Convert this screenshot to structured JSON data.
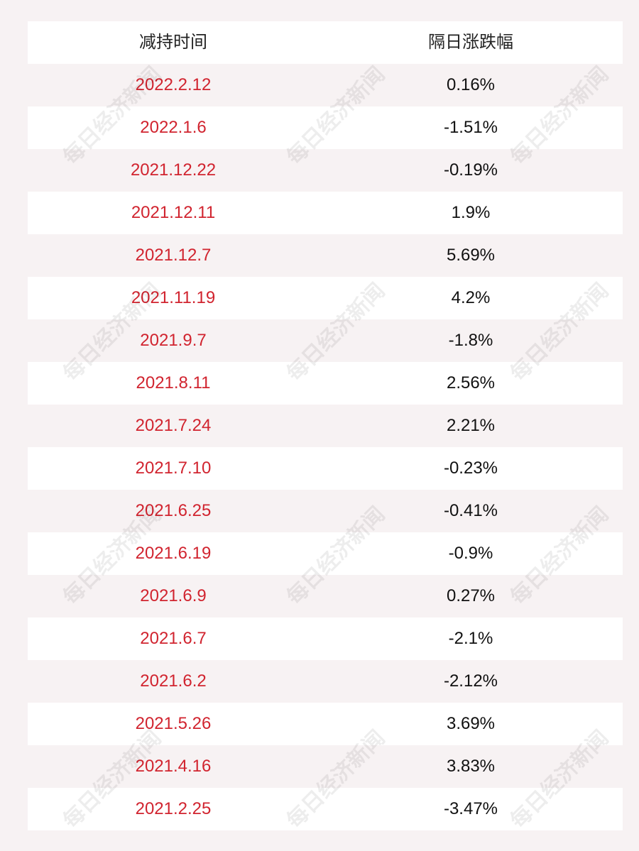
{
  "table": {
    "headers": [
      "减持时间",
      "隔日涨跌幅"
    ],
    "rows": [
      {
        "date": "2022.2.12",
        "change": "0.16%"
      },
      {
        "date": "2022.1.6",
        "change": "-1.51%"
      },
      {
        "date": "2021.12.22",
        "change": "-0.19%"
      },
      {
        "date": "2021.12.11",
        "change": "1.9%"
      },
      {
        "date": "2021.12.7",
        "change": "5.69%"
      },
      {
        "date": "2021.11.19",
        "change": "4.2%"
      },
      {
        "date": "2021.9.7",
        "change": "-1.8%"
      },
      {
        "date": "2021.8.11",
        "change": "2.56%"
      },
      {
        "date": "2021.7.24",
        "change": "2.21%"
      },
      {
        "date": "2021.7.10",
        "change": "-0.23%"
      },
      {
        "date": "2021.6.25",
        "change": "-0.41%"
      },
      {
        "date": "2021.6.19",
        "change": "-0.9%"
      },
      {
        "date": "2021.6.9",
        "change": "0.27%"
      },
      {
        "date": "2021.6.7",
        "change": "-2.1%"
      },
      {
        "date": "2021.6.2",
        "change": "-2.12%"
      },
      {
        "date": "2021.5.26",
        "change": "3.69%"
      },
      {
        "date": "2021.4.16",
        "change": "3.83%"
      },
      {
        "date": "2021.2.25",
        "change": "-3.47%"
      }
    ]
  },
  "watermark": {
    "text": "每日经济新闻"
  },
  "colors": {
    "date_text": "#d1242f",
    "change_text": "#111111",
    "header_text": "#222222",
    "row_white": "#ffffff",
    "row_pink": "#f7f2f3"
  }
}
